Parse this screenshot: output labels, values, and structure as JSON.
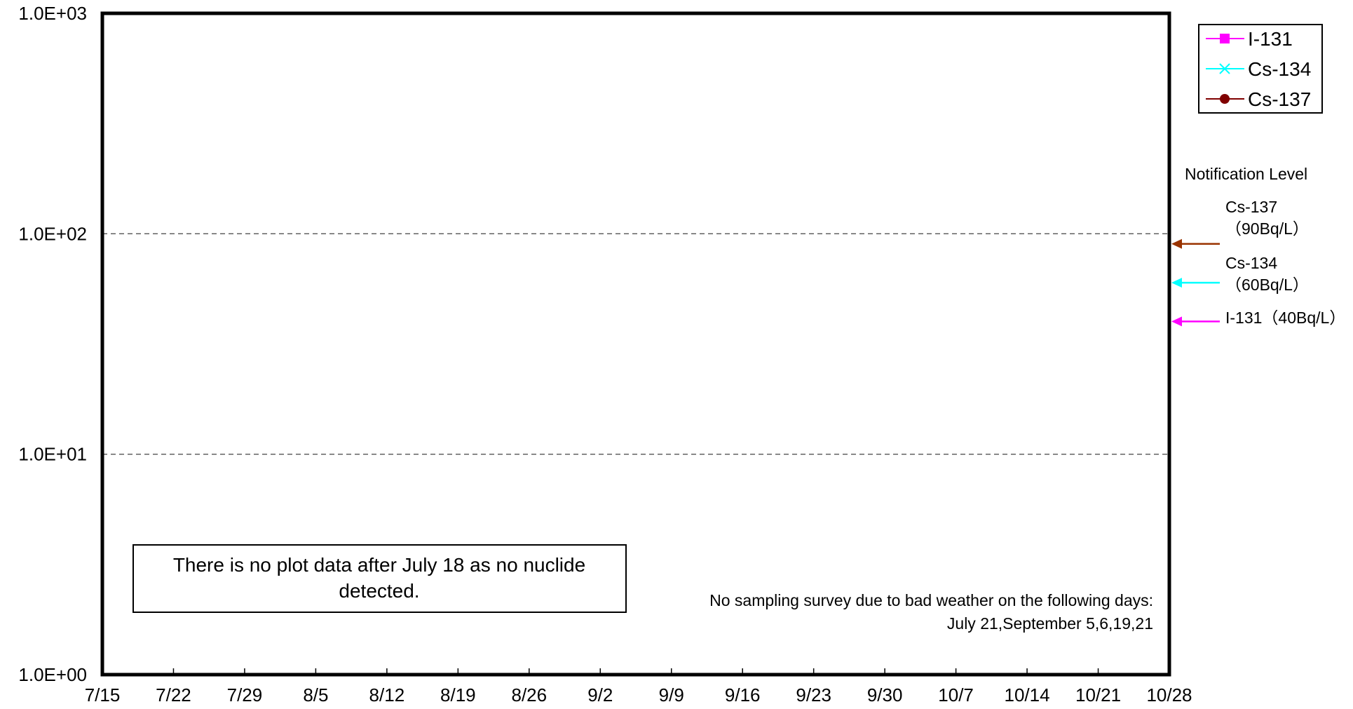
{
  "chart_data": {
    "type": "line",
    "x_type": "date",
    "x_ticks": [
      "7/15",
      "7/22",
      "7/29",
      "8/5",
      "8/12",
      "8/19",
      "8/26",
      "9/2",
      "9/9",
      "9/16",
      "9/23",
      "9/30",
      "10/7",
      "10/14",
      "10/21",
      "10/28"
    ],
    "y_scale": "log",
    "ylim": [
      1,
      1000
    ],
    "y_ticks": [
      1,
      10,
      100,
      1000
    ],
    "y_tick_labels": [
      "1.0E+00",
      "1.0E+01",
      "1.0E+02",
      "1.0E+03"
    ],
    "grid": "horizontal dashed at decades",
    "legend_position": "top-right",
    "series": [
      {
        "name": "I-131",
        "color": "#ff00ff",
        "marker": "square",
        "values": []
      },
      {
        "name": "Cs-134",
        "color": "#00ffff",
        "marker": "x",
        "values": []
      },
      {
        "name": "Cs-137",
        "color": "#800000",
        "marker": "circle",
        "values": []
      }
    ],
    "notification_level": {
      "title": "Notification Level",
      "levels": [
        {
          "nuclide": "Cs-137",
          "label_line1": "Cs-137",
          "label_line2": "（90Bq/L）",
          "value": 90,
          "color": "#993300"
        },
        {
          "nuclide": "Cs-134",
          "label_line1": "Cs-134",
          "label_line2": "（60Bq/L）",
          "value": 60,
          "color": "#00ffff"
        },
        {
          "nuclide": "I-131",
          "label_line1": "I-131（40Bq/L）",
          "label_line2": "",
          "value": 40,
          "color": "#ff00ff"
        }
      ]
    },
    "annotations": {
      "box_line1": "There is no plot data after July 18 as no nuclide",
      "box_line2": "detected.",
      "note_line1": "No sampling survey due to bad weather on the following days:",
      "note_line2": "July 21,September 5,6,19,21"
    }
  }
}
